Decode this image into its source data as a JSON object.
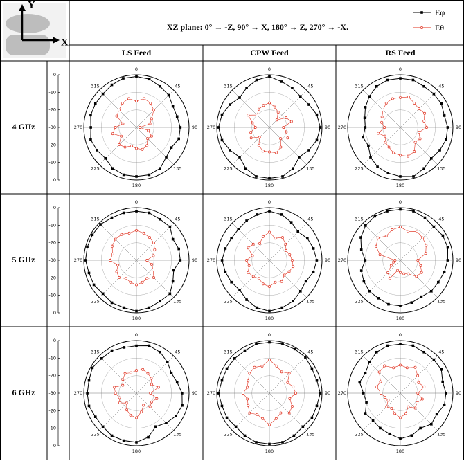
{
  "header": {
    "axes_icon": {
      "y": "Y",
      "x": "X"
    },
    "title": "XZ plane: 0° → -Z, 90° → X, 180° → Z, 270° → -X.",
    "columns": [
      "LS Feed",
      "CPW Feed",
      "RS Feed"
    ],
    "rows": [
      "4 GHz",
      "5 GHz",
      "6 GHz"
    ]
  },
  "chart_data": [
    {
      "type": "polar",
      "theta": [
        0,
        15,
        30,
        45,
        60,
        75,
        90,
        105,
        120,
        135,
        150,
        165,
        180,
        195,
        210,
        225,
        240,
        255,
        270,
        285,
        300,
        315,
        330,
        345
      ],
      "rlim": [
        -30,
        0
      ],
      "rticks": [
        -30,
        -20,
        -10,
        0
      ],
      "thetaticks": [
        0,
        45,
        90,
        135,
        180,
        225,
        270,
        315
      ],
      "series": [
        {
          "name": "Eφ",
          "color": "#000000",
          "marker": "square",
          "values": [
            -1,
            -1.5,
            -3,
            -4,
            -6,
            -6,
            -5,
            -5,
            -7,
            -6,
            -3,
            -2,
            -2,
            -2,
            -3,
            -5,
            -4,
            -3,
            -4,
            -3,
            -3,
            -3,
            -2,
            -1
          ]
        },
        {
          "name": "Eθ",
          "color": "#e0301e",
          "marker": "circle",
          "values": [
            -15,
            -13,
            -14,
            -16,
            -20,
            -22,
            -28,
            -23,
            -20,
            -21,
            -18,
            -17,
            -18,
            -19,
            -17,
            -16,
            -20,
            -16,
            -18,
            -22,
            -17,
            -16,
            -14,
            -13
          ]
        }
      ]
    },
    {
      "type": "polar",
      "theta": [
        0,
        15,
        30,
        45,
        60,
        75,
        90,
        105,
        120,
        135,
        150,
        165,
        180,
        195,
        210,
        225,
        240,
        255,
        270,
        285,
        300,
        315,
        330,
        345
      ],
      "rlim": [
        -30,
        0
      ],
      "rticks": [
        -30,
        -20,
        -10,
        0
      ],
      "thetaticks": [
        0,
        45,
        90,
        135,
        180,
        225,
        270,
        315
      ],
      "series": [
        {
          "name": "Eφ",
          "color": "#000000",
          "marker": "square",
          "values": [
            -1,
            -3,
            -4,
            -5,
            -4,
            -2,
            -1,
            -2,
            -4,
            -6,
            -3,
            -1,
            -1,
            -1,
            -3,
            -6,
            -4,
            -2,
            -1,
            -2,
            -4,
            -6,
            -4,
            -2
          ]
        },
        {
          "name": "Eθ",
          "color": "#e0301e",
          "marker": "circle",
          "values": [
            -16,
            -18,
            -20,
            -24,
            -19,
            -17,
            -22,
            -20,
            -18,
            -21,
            -17,
            -15,
            -16,
            -16,
            -18,
            -22,
            -18,
            -19,
            -22,
            -20,
            -16,
            -20,
            -18,
            -17
          ]
        }
      ]
    },
    {
      "type": "polar",
      "theta": [
        0,
        15,
        30,
        45,
        60,
        75,
        90,
        105,
        120,
        135,
        150,
        165,
        180,
        195,
        210,
        225,
        240,
        255,
        270,
        285,
        300,
        315,
        330,
        345
      ],
      "rlim": [
        -30,
        0
      ],
      "rticks": [
        -30,
        -20,
        -10,
        0
      ],
      "thetaticks": [
        0,
        45,
        90,
        135,
        180,
        225,
        270,
        315
      ],
      "series": [
        {
          "name": "Eφ",
          "color": "#000000",
          "marker": "square",
          "values": [
            -2,
            -2,
            -3,
            -3,
            -3,
            -4,
            -3,
            -3,
            -4,
            -5,
            -3,
            -1,
            -2,
            -3,
            -4,
            -6,
            -9,
            -8,
            -10,
            -9,
            -7,
            -5,
            -3,
            -2
          ]
        },
        {
          "name": "Eθ",
          "color": "#e0301e",
          "marker": "circle",
          "values": [
            -13,
            -12,
            -14,
            -15,
            -14,
            -16,
            -15,
            -19,
            -17,
            -18,
            -14,
            -13,
            -14,
            -15,
            -17,
            -18,
            -20,
            -17,
            -21,
            -19,
            -18,
            -16,
            -14,
            -13
          ]
        }
      ]
    },
    {
      "type": "polar",
      "theta": [
        0,
        15,
        30,
        45,
        60,
        75,
        90,
        105,
        120,
        135,
        150,
        165,
        180,
        195,
        210,
        225,
        240,
        255,
        270,
        285,
        300,
        315,
        330,
        345
      ],
      "rlim": [
        -30,
        0
      ],
      "rticks": [
        -30,
        -20,
        -10,
        0
      ],
      "thetaticks": [
        0,
        45,
        90,
        135,
        180,
        225,
        270,
        315
      ],
      "series": [
        {
          "name": "Eφ",
          "color": "#000000",
          "marker": "square",
          "values": [
            -2,
            -2,
            -3,
            -3,
            -6,
            -5,
            -5,
            -8,
            -6,
            -3,
            -3,
            -2,
            -1,
            -2,
            -2,
            -3,
            -2,
            -2,
            -1,
            -1,
            -1,
            -1,
            -2,
            -2
          ]
        },
        {
          "name": "Eθ",
          "color": "#e0301e",
          "marker": "circle",
          "values": [
            -13,
            -14,
            -15,
            -16,
            -18,
            -20,
            -24,
            -21,
            -19,
            -16,
            -18,
            -17,
            -16,
            -17,
            -18,
            -16,
            -17,
            -19,
            -15,
            -16,
            -14,
            -13,
            -13,
            -14
          ]
        }
      ]
    },
    {
      "type": "polar",
      "theta": [
        0,
        15,
        30,
        45,
        60,
        75,
        90,
        105,
        120,
        135,
        150,
        165,
        180,
        195,
        210,
        225,
        240,
        255,
        270,
        285,
        300,
        315,
        330,
        345
      ],
      "rlim": [
        -30,
        0
      ],
      "rticks": [
        -30,
        -20,
        -10,
        0
      ],
      "thetaticks": [
        0,
        45,
        90,
        135,
        180,
        225,
        270,
        315
      ],
      "series": [
        {
          "name": "Eφ",
          "color": "#000000",
          "marker": "square",
          "values": [
            -2,
            -3,
            -5,
            -7,
            -5,
            -4,
            -3,
            -4,
            -6,
            -5,
            -3,
            -2,
            -1,
            -2,
            -4,
            -6,
            -5,
            -4,
            -3,
            -4,
            -5,
            -5,
            -4,
            -3
          ]
        },
        {
          "name": "Eθ",
          "color": "#e0301e",
          "marker": "circle",
          "values": [
            -14,
            -17,
            -15,
            -17,
            -19,
            -18,
            -17,
            -16,
            -17,
            -18,
            -16,
            -17,
            -15,
            -16,
            -18,
            -17,
            -16,
            -18,
            -17,
            -20,
            -16,
            -17,
            -19,
            -16
          ]
        }
      ]
    },
    {
      "type": "polar",
      "theta": [
        0,
        15,
        30,
        45,
        60,
        75,
        90,
        105,
        120,
        135,
        150,
        165,
        180,
        195,
        210,
        225,
        240,
        255,
        270,
        285,
        300,
        315,
        330,
        345
      ],
      "rlim": [
        -30,
        0
      ],
      "rticks": [
        -30,
        -20,
        -10,
        0
      ],
      "thetaticks": [
        0,
        45,
        90,
        135,
        180,
        225,
        270,
        315
      ],
      "series": [
        {
          "name": "Eφ",
          "color": "#000000",
          "marker": "square",
          "values": [
            -1,
            -1,
            -2,
            -3,
            -2,
            -2,
            -3,
            -4,
            -5,
            -5,
            -6,
            -5,
            -4,
            -4,
            -5,
            -5,
            -6,
            -7,
            -10,
            -7,
            -4,
            -2,
            -1,
            -1
          ]
        },
        {
          "name": "Eθ",
          "color": "#e0301e",
          "marker": "circle",
          "values": [
            -11,
            -13,
            -11,
            -12,
            -13,
            -15,
            -20,
            -18,
            -16,
            -17,
            -21,
            -22,
            -23,
            -24,
            -18,
            -20,
            -24,
            -26,
            -27,
            -18,
            -14,
            -12,
            -14,
            -12
          ]
        }
      ]
    },
    {
      "type": "polar",
      "theta": [
        0,
        15,
        30,
        45,
        60,
        75,
        90,
        105,
        120,
        135,
        150,
        165,
        180,
        195,
        210,
        225,
        240,
        255,
        270,
        285,
        300,
        315,
        330,
        345
      ],
      "rlim": [
        -30,
        0
      ],
      "rticks": [
        -30,
        -20,
        -10,
        0
      ],
      "thetaticks": [
        0,
        45,
        90,
        135,
        180,
        225,
        270,
        315
      ],
      "series": [
        {
          "name": "Eφ",
          "color": "#000000",
          "marker": "square",
          "values": [
            -3,
            -2,
            -3,
            -5,
            -7,
            -6,
            -4,
            -3,
            -4,
            -6,
            -8,
            -4,
            -2,
            -2,
            -2,
            -3,
            -3,
            -2,
            -2,
            -2,
            -1,
            -2,
            -2,
            -3
          ]
        },
        {
          "name": "Eθ",
          "color": "#e0301e",
          "marker": "circle",
          "values": [
            -17,
            -16,
            -17,
            -18,
            -20,
            -17,
            -22,
            -18,
            -20,
            -19,
            -22,
            -19,
            -16,
            -17,
            -19,
            -22,
            -19,
            -20,
            -18,
            -17,
            -21,
            -19,
            -17,
            -18
          ]
        }
      ]
    },
    {
      "type": "polar",
      "theta": [
        0,
        15,
        30,
        45,
        60,
        75,
        90,
        105,
        120,
        135,
        150,
        165,
        180,
        195,
        210,
        225,
        240,
        255,
        270,
        285,
        300,
        315,
        330,
        345
      ],
      "rlim": [
        -30,
        0
      ],
      "rticks": [
        -30,
        -20,
        -10,
        0
      ],
      "thetaticks": [
        0,
        45,
        90,
        135,
        180,
        225,
        270,
        315
      ],
      "series": [
        {
          "name": "Eφ",
          "color": "#000000",
          "marker": "square",
          "values": [
            -1,
            -1,
            -1,
            -1,
            -2,
            -2,
            -1,
            -2,
            -2,
            -3,
            -2,
            -1,
            -1,
            -1,
            -2,
            -3,
            -2,
            -2,
            -1,
            -2,
            -2,
            -2,
            -2,
            -1
          ]
        },
        {
          "name": "Eθ",
          "color": "#e0301e",
          "marker": "circle",
          "values": [
            -11,
            -14,
            -16,
            -14,
            -18,
            -16,
            -15,
            -18,
            -15,
            -14,
            -17,
            -15,
            -12,
            -15,
            -16,
            -14,
            -16,
            -17,
            -15,
            -17,
            -16,
            -14,
            -13,
            -14
          ]
        }
      ]
    },
    {
      "type": "polar",
      "theta": [
        0,
        15,
        30,
        45,
        60,
        75,
        90,
        105,
        120,
        135,
        150,
        165,
        180,
        195,
        210,
        225,
        240,
        255,
        270,
        285,
        300,
        315,
        330,
        345
      ],
      "rlim": [
        -30,
        0
      ],
      "rticks": [
        -30,
        -20,
        -10,
        0
      ],
      "thetaticks": [
        0,
        45,
        90,
        135,
        180,
        225,
        270,
        315
      ],
      "series": [
        {
          "name": "Eφ",
          "color": "#000000",
          "marker": "square",
          "values": [
            -2,
            -2,
            -3,
            -3,
            -3,
            -5,
            -4,
            -4,
            -6,
            -5,
            -7,
            -5,
            -4,
            -6,
            -7,
            -8,
            -7,
            -10,
            -9,
            -6,
            -7,
            -5,
            -3,
            -2
          ]
        },
        {
          "name": "Eθ",
          "color": "#e0301e",
          "marker": "circle",
          "values": [
            -14,
            -15,
            -13,
            -16,
            -18,
            -16,
            -20,
            -17,
            -19,
            -18,
            -21,
            -18,
            -16,
            -18,
            -20,
            -19,
            -22,
            -21,
            -19,
            -16,
            -17,
            -13,
            -12,
            -15
          ]
        }
      ]
    }
  ]
}
